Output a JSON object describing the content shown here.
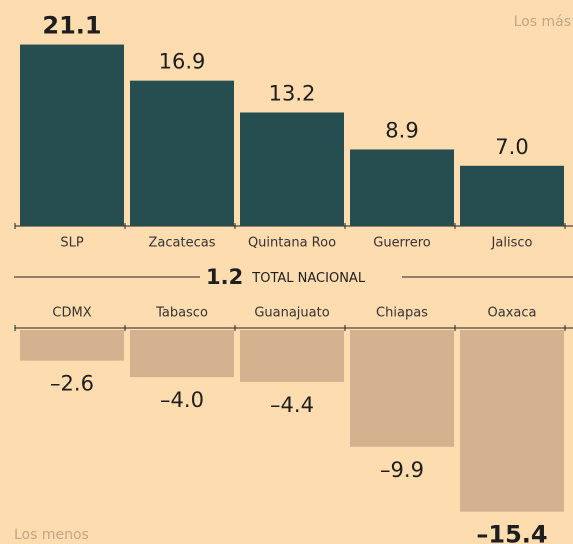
{
  "chart_data": [
    {
      "type": "bar",
      "annotation": "Los más",
      "categories": [
        "SLP",
        "Zacatecas",
        "Quintana Roo",
        "Guerrero",
        "Jalisco"
      ],
      "values": [
        21.1,
        16.9,
        13.2,
        8.9,
        7.0
      ],
      "value_labels": [
        "21.1",
        "16.9",
        "13.2",
        "8.9",
        "7.0"
      ],
      "color": "#264d4f"
    },
    {
      "type": "bar",
      "annotation": "Los menos",
      "categories": [
        "CDMX",
        "Tabasco",
        "Guanajuato",
        "Chiapas",
        "Oaxaca"
      ],
      "values": [
        -2.6,
        -4.0,
        -4.4,
        -9.9,
        -15.4
      ],
      "value_labels": [
        "–2.6",
        "–4.0",
        "–4.4",
        "–9.9",
        "–15.4"
      ],
      "color": "#d4b28f"
    }
  ],
  "total_value": 1.2,
  "total_label": "TOTAL NACIONAL"
}
